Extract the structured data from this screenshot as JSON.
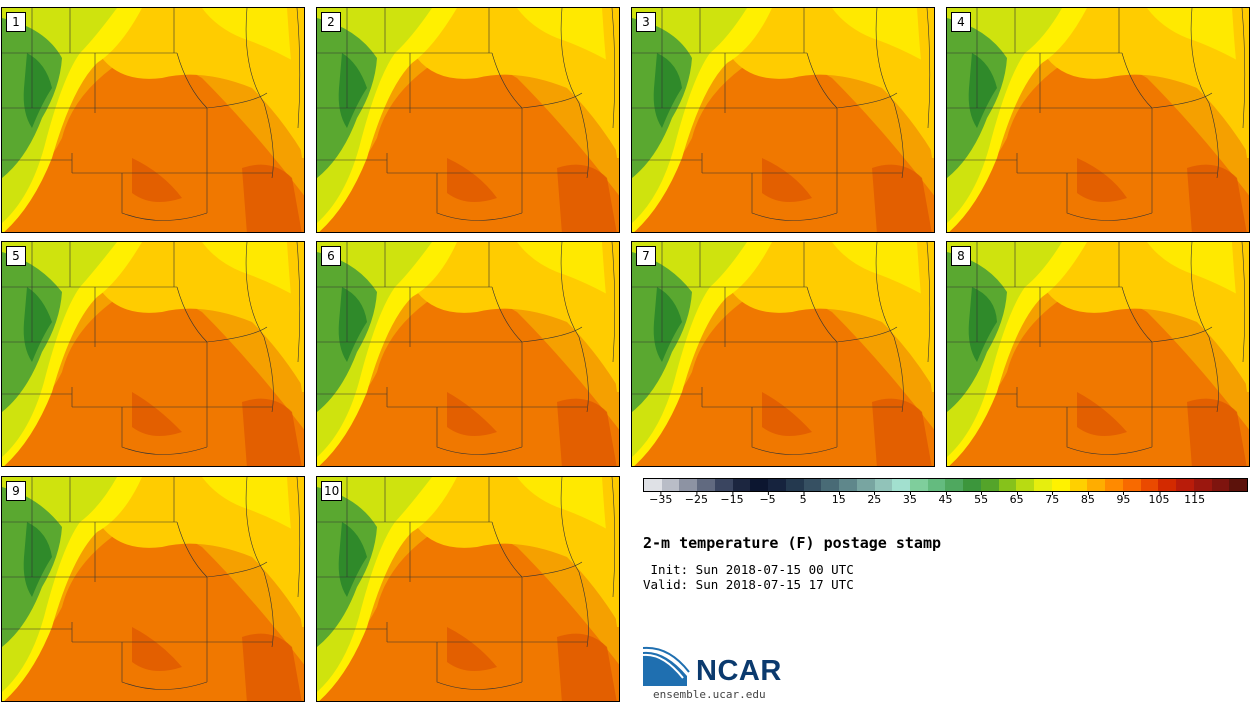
{
  "panels": [
    {
      "label": "1"
    },
    {
      "label": "2"
    },
    {
      "label": "3"
    },
    {
      "label": "4"
    },
    {
      "label": "5"
    },
    {
      "label": "6"
    },
    {
      "label": "7"
    },
    {
      "label": "8"
    },
    {
      "label": "9"
    },
    {
      "label": "10"
    }
  ],
  "colorbar": {
    "colors": [
      "#dfe1e6",
      "#b9bdc7",
      "#8d93a3",
      "#616a80",
      "#3a4560",
      "#1c2640",
      "#0c1630",
      "#16233e",
      "#24394f",
      "#365062",
      "#496b76",
      "#5f878b",
      "#78a5a1",
      "#91c3b9",
      "#a2e0cf",
      "#7fce9c",
      "#64bb7f",
      "#4fa85f",
      "#3c963c",
      "#54a42a",
      "#86c21b",
      "#b8db12",
      "#e6ee0e",
      "#fff200",
      "#ffd000",
      "#ffad00",
      "#ff8a00",
      "#f86a00",
      "#ea4a00",
      "#d32a00",
      "#b91c0a",
      "#9b170e",
      "#7e140e",
      "#5c120b"
    ],
    "tick_labels": [
      "−35",
      "−25",
      "−15",
      "−5",
      "5",
      "15",
      "25",
      "35",
      "45",
      "55",
      "65",
      "75",
      "85",
      "95",
      "105",
      "115"
    ],
    "min": -35,
    "step": 5
  },
  "title": "2-m temperature (F) postage stamp",
  "init": " Init: Sun 2018-07-15 00 UTC",
  "valid": "Valid: Sun 2018-07-15 17 UTC",
  "logo": {
    "text": "NCAR",
    "url": "ensemble.ucar.edu"
  },
  "colors": {
    "cool_green": "#5aa830",
    "dark_green": "#2f8a2a",
    "yellow_green": "#cfe30e",
    "yellow": "#fff000",
    "gold": "#ffcc00",
    "orange": "#f5a000",
    "dark_orange": "#f07800",
    "red_orange": "#e05a00"
  }
}
